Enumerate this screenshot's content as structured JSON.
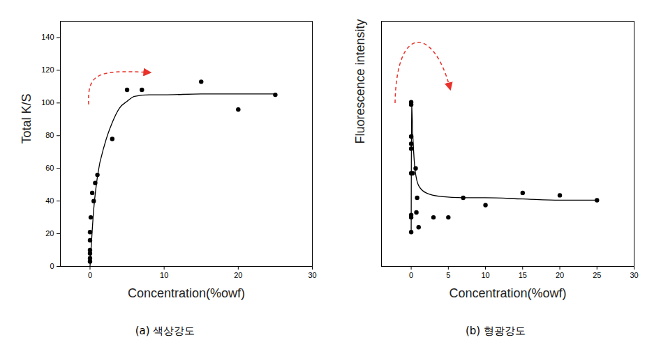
{
  "chart_data": [
    {
      "type": "scatter",
      "title": "(a) 색상강도",
      "x_label": "Concentration(%owf)",
      "y_label": "Total K/S",
      "xlim": [
        -4,
        30
      ],
      "xticks": [
        0,
        10,
        20,
        30
      ],
      "ylim": [
        0,
        150
      ],
      "yticks": [
        0,
        20,
        40,
        60,
        80,
        100,
        120,
        140
      ],
      "series": [
        {
          "type": "scatter",
          "marker": "circle",
          "color": "#000000",
          "x": [
            0,
            0,
            0,
            0,
            0,
            0,
            0.1,
            0.3,
            0.5,
            0.7,
            1,
            3,
            5,
            7,
            15,
            20,
            25
          ],
          "values": [
            3,
            5,
            8,
            10,
            16,
            21,
            30,
            45,
            40,
            51,
            56,
            78,
            108,
            108,
            113,
            96,
            105
          ]
        },
        {
          "type": "line",
          "line_style": "solid",
          "color": "#000000",
          "x": [
            0,
            0.5,
            1,
            2,
            3,
            4,
            5,
            6,
            8,
            10,
            15,
            20,
            25
          ],
          "values": [
            0,
            35,
            55,
            75,
            88,
            97,
            101,
            104,
            105,
            105,
            105.5,
            105.5,
            105.5
          ]
        }
      ]
    },
    {
      "type": "scatter",
      "title": "(b) 형광강도",
      "x_label": "Concentration(%owf)",
      "y_label": "Fluorescence intensity",
      "tick_labels": "x",
      "xlim": [
        -4,
        30
      ],
      "xticks": [
        0,
        5,
        10,
        15,
        20,
        25,
        30
      ],
      "ylim": [
        0,
        100
      ],
      "yticks": [],
      "series": [
        {
          "type": "scatter",
          "marker": "circle",
          "color": "#000000",
          "x": [
            0,
            0,
            0,
            0,
            0,
            0,
            0,
            0,
            0,
            0.2,
            0.6,
            0.7,
            0.8,
            1,
            3,
            5,
            7,
            10,
            15,
            20,
            25
          ],
          "values": [
            67,
            66,
            53,
            50,
            48,
            38,
            21,
            20,
            14,
            38,
            40,
            22,
            28,
            16,
            20,
            20,
            28,
            25,
            30,
            29,
            27
          ]
        },
        {
          "type": "line",
          "line_style": "solid",
          "color": "#000000",
          "x": [
            0,
            0.05,
            0.2,
            0.5,
            1,
            2,
            4,
            7,
            10,
            15,
            20,
            25
          ],
          "values": [
            15,
            67,
            55,
            40,
            33,
            30,
            28.5,
            28,
            28,
            27.5,
            27,
            27
          ]
        }
      ]
    }
  ]
}
